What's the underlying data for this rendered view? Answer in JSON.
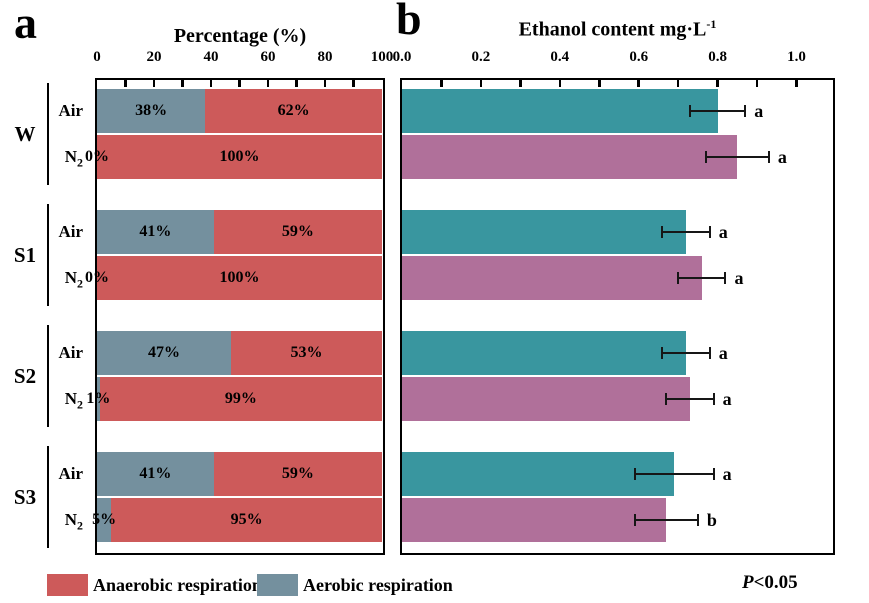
{
  "figure": {
    "panel_a_letter": "a",
    "panel_b_letter": "b",
    "footnote_italic": "P",
    "footnote_rest": "<0.05"
  },
  "legend": {
    "items": [
      {
        "label": "Anaerobic respiration",
        "color": "#cd5a5a"
      },
      {
        "label": "Aerobic respiration",
        "color": "#74909e"
      }
    ]
  },
  "colors": {
    "anaerobic": "#cd5a5a",
    "aerobic": "#74909e",
    "air_bar": "#39969f",
    "n2_bar": "#b0709a",
    "axis": "#000000"
  },
  "chart_data": [
    {
      "type": "bar",
      "panel": "a",
      "title": "Percentage (%)",
      "orientation": "horizontal",
      "stacked": true,
      "xlim": [
        0,
        100
      ],
      "tick_values": [
        0,
        20,
        40,
        60,
        80,
        100
      ],
      "tick_labels": [
        "0",
        "20",
        "40",
        "60",
        "80",
        "100"
      ],
      "minor_tick_step": 10,
      "grid": false,
      "groups": [
        "W",
        "S1",
        "S2",
        "S3"
      ],
      "series": [
        {
          "name": "Aerobic respiration",
          "color": "#74909e"
        },
        {
          "name": "Anaerobic respiration",
          "color": "#cd5a5a"
        }
      ],
      "rows": [
        {
          "group": "W",
          "condition": "Air",
          "aerobic_pct": 38,
          "anaerobic_pct": 62,
          "aerobic_label": "38%",
          "anaerobic_label": "62%"
        },
        {
          "group": "W",
          "condition": "N₂",
          "aerobic_pct": 0,
          "anaerobic_pct": 100,
          "aerobic_label": "0%",
          "anaerobic_label": "100%"
        },
        {
          "group": "S1",
          "condition": "Air",
          "aerobic_pct": 41,
          "anaerobic_pct": 59,
          "aerobic_label": "41%",
          "anaerobic_label": "59%"
        },
        {
          "group": "S1",
          "condition": "N₂",
          "aerobic_pct": 0,
          "anaerobic_pct": 100,
          "aerobic_label": "0%",
          "anaerobic_label": "100%"
        },
        {
          "group": "S2",
          "condition": "Air",
          "aerobic_pct": 47,
          "anaerobic_pct": 53,
          "aerobic_label": "47%",
          "anaerobic_label": "53%"
        },
        {
          "group": "S2",
          "condition": "N₂",
          "aerobic_pct": 1,
          "anaerobic_pct": 99,
          "aerobic_label": "1%",
          "anaerobic_label": "99%"
        },
        {
          "group": "S3",
          "condition": "Air",
          "aerobic_pct": 41,
          "anaerobic_pct": 59,
          "aerobic_label": "41%",
          "anaerobic_label": "59%"
        },
        {
          "group": "S3",
          "condition": "N₂",
          "aerobic_pct": 5,
          "anaerobic_pct": 95,
          "aerobic_label": "5%",
          "anaerobic_label": "95%"
        }
      ]
    },
    {
      "type": "bar",
      "panel": "b",
      "title": "Ethanol content mg·L⁻¹",
      "title_main": "Ethanol content mg·L",
      "title_sup": "-1",
      "orientation": "horizontal",
      "xlim": [
        0,
        1.09
      ],
      "tick_values": [
        0,
        0.2,
        0.4,
        0.6,
        0.8,
        1.0
      ],
      "tick_labels": [
        "0.0",
        "0.2",
        "0.4",
        "0.6",
        "0.8",
        "1.0"
      ],
      "minor_tick_step": 0.1,
      "grid": false,
      "groups": [
        "W",
        "S1",
        "S2",
        "S3"
      ],
      "rows": [
        {
          "group": "W",
          "condition": "Air",
          "value": 0.8,
          "error": 0.07,
          "letter": "a",
          "bar": "air"
        },
        {
          "group": "W",
          "condition": "N₂",
          "value": 0.85,
          "error": 0.08,
          "letter": "a",
          "bar": "n2"
        },
        {
          "group": "S1",
          "condition": "Air",
          "value": 0.72,
          "error": 0.06,
          "letter": "a",
          "bar": "air"
        },
        {
          "group": "S1",
          "condition": "N₂",
          "value": 0.76,
          "error": 0.06,
          "letter": "a",
          "bar": "n2"
        },
        {
          "group": "S2",
          "condition": "Air",
          "value": 0.72,
          "error": 0.06,
          "letter": "a",
          "bar": "air"
        },
        {
          "group": "S2",
          "condition": "N₂",
          "value": 0.73,
          "error": 0.06,
          "letter": "a",
          "bar": "n2"
        },
        {
          "group": "S3",
          "condition": "Air",
          "value": 0.69,
          "error": 0.1,
          "letter": "a",
          "bar": "air"
        },
        {
          "group": "S3",
          "condition": "N₂",
          "value": 0.67,
          "error": 0.08,
          "letter": "b",
          "bar": "n2"
        }
      ]
    }
  ]
}
